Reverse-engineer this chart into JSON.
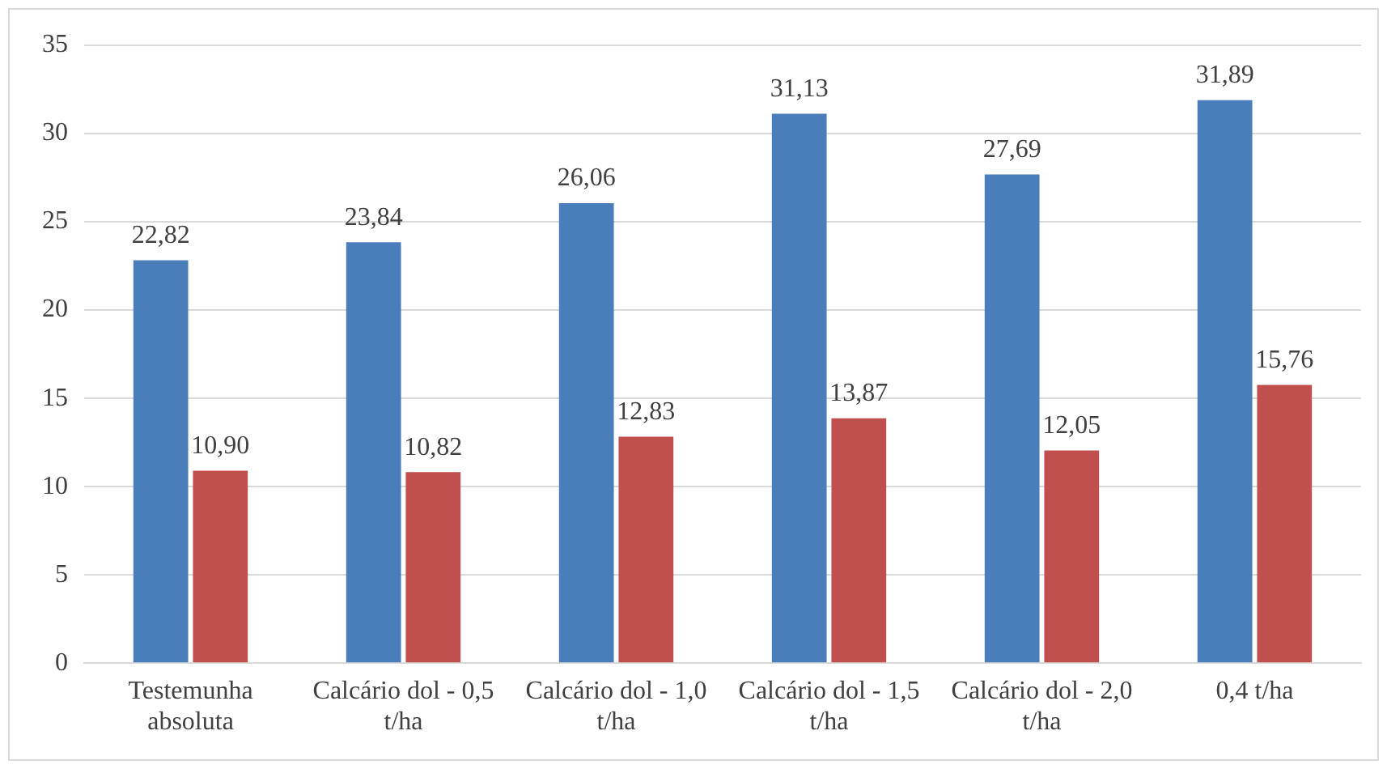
{
  "chart_data": {
    "type": "bar",
    "categories": [
      "Testemunha absoluta",
      "Calcário dol - 0,5 t/ha",
      "Calcário dol - 1,0 t/ha",
      "Calcário dol - 1,5 t/ha",
      "Calcário dol - 2,0 t/ha",
      "0,4 t/ha"
    ],
    "series": [
      {
        "color": "#4a7ebb",
        "values": [
          22.82,
          23.84,
          26.06,
          31.13,
          27.69,
          31.89
        ],
        "value_labels": [
          "22,82",
          "23,84",
          "26,06",
          "31,13",
          "27,69",
          "31,89"
        ]
      },
      {
        "color": "#c0504d",
        "values": [
          10.9,
          10.82,
          12.83,
          13.87,
          12.05,
          15.76
        ],
        "value_labels": [
          "10,90",
          "10,82",
          "12,83",
          "13,87",
          "12,05",
          "15,76"
        ]
      }
    ],
    "ylim": [
      0,
      35
    ],
    "yticks": [
      0,
      5,
      10,
      15,
      20,
      25,
      30,
      35
    ],
    "grid": "y"
  }
}
